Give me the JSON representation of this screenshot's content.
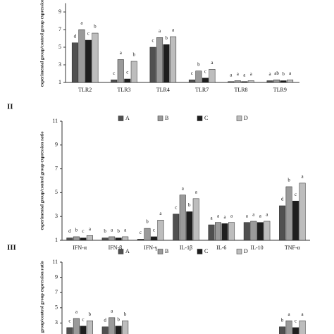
{
  "chart_data": [
    {
      "type": "bar",
      "ylabel": "experimental group/control group expression",
      "categories": [
        "TLR2",
        "TLR3",
        "TLR4",
        "TLR7",
        "TLR8",
        "TLR9"
      ],
      "series": [
        {
          "name": "A",
          "color": "#505050",
          "values": [
            5.5,
            1.3,
            5.0,
            1.3,
            1.1,
            1.2
          ],
          "letters": [
            "d",
            "c",
            "c",
            "c",
            "a",
            "a"
          ]
        },
        {
          "name": "B",
          "color": "#9a9a9a",
          "values": [
            7.0,
            3.6,
            6.1,
            2.3,
            1.2,
            1.3
          ],
          "letters": [
            "a",
            "a",
            "a",
            "b",
            "a",
            "ab"
          ]
        },
        {
          "name": "C",
          "color": "#1e1e1e",
          "values": [
            5.8,
            1.4,
            5.3,
            1.5,
            1.1,
            1.2
          ],
          "letters": [
            "c",
            "c",
            "b",
            "c",
            "a",
            "b"
          ]
        },
        {
          "name": "D",
          "color": "#bdbdbd",
          "values": [
            6.6,
            3.4,
            6.2,
            2.5,
            1.2,
            1.3
          ],
          "letters": [
            "b",
            "b",
            "a",
            "a",
            "a",
            "a"
          ]
        }
      ],
      "ylim": [
        1,
        10
      ],
      "yticks": [
        1,
        3,
        5,
        7,
        9
      ]
    },
    {
      "type": "bar",
      "title": "II",
      "ylabel": "experimental group/control group expression ratio",
      "categories": [
        "IFN-α",
        "IFN-β",
        "IFN-γ",
        "IL-1β",
        "IL-6",
        "IL-10",
        "TNF-α"
      ],
      "series": [
        {
          "name": "A",
          "color": "#505050",
          "values": [
            1.2,
            1.2,
            1.1,
            3.2,
            2.3,
            2.5,
            3.9
          ],
          "letters": [
            "d",
            "b",
            "c",
            "c",
            "a",
            "a",
            "d"
          ]
        },
        {
          "name": "B",
          "color": "#9a9a9a",
          "values": [
            1.3,
            1.3,
            2.0,
            4.8,
            2.5,
            2.6,
            5.5
          ],
          "letters": [
            "b",
            "a",
            "b",
            "a",
            "a",
            "a",
            "b"
          ]
        },
        {
          "name": "C",
          "color": "#1e1e1e",
          "values": [
            1.2,
            1.2,
            1.3,
            3.4,
            2.4,
            2.5,
            4.3
          ],
          "letters": [
            "c",
            "b",
            "c",
            "b",
            "a",
            "a",
            "c"
          ]
        },
        {
          "name": "D",
          "color": "#bdbdbd",
          "values": [
            1.4,
            1.3,
            2.7,
            4.5,
            2.5,
            2.6,
            5.8
          ],
          "letters": [
            "a",
            "a",
            "a",
            "a",
            "a",
            "a",
            "a"
          ]
        }
      ],
      "ylim": [
        1,
        11
      ],
      "yticks": [
        1,
        3,
        5,
        7,
        9,
        11
      ]
    },
    {
      "type": "bar",
      "title": "III",
      "ylabel": "l group/control group expression ratio",
      "categories": [
        null,
        null,
        null,
        null,
        null,
        null,
        null
      ],
      "series": [
        {
          "name": "A",
          "color": "#505050",
          "values": [
            2.4,
            2.5,
            null,
            null,
            null,
            null,
            2.5
          ],
          "letters": [
            "c",
            "d",
            null,
            null,
            null,
            null,
            "b"
          ]
        },
        {
          "name": "B",
          "color": "#9a9a9a",
          "values": [
            3.6,
            3.7,
            null,
            null,
            null,
            null,
            3.3
          ],
          "letters": [
            "a",
            "a",
            null,
            null,
            null,
            null,
            "a"
          ]
        },
        {
          "name": "C",
          "color": "#1e1e1e",
          "values": [
            2.6,
            2.6,
            null,
            null,
            null,
            null,
            2.4
          ],
          "letters": [
            "c",
            "b",
            null,
            null,
            null,
            null,
            "c"
          ]
        },
        {
          "name": "D",
          "color": "#bdbdbd",
          "values": [
            3.3,
            3.3,
            null,
            null,
            null,
            null,
            3.3
          ],
          "letters": [
            "b",
            "b",
            null,
            null,
            null,
            null,
            "a"
          ]
        }
      ],
      "ylim": [
        1,
        11
      ],
      "yticks": [
        3,
        5,
        7,
        9,
        11
      ]
    }
  ]
}
